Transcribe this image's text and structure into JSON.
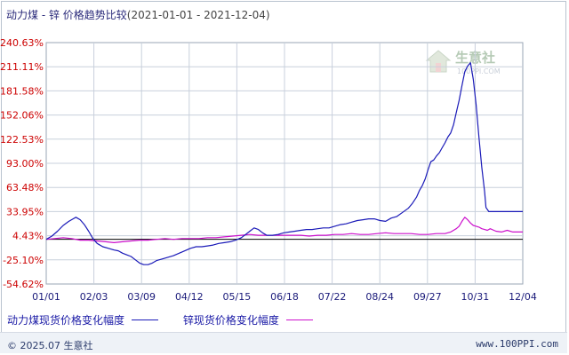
{
  "header": {
    "title": "动力煤 - 锌 价格趋势比较",
    "date_range": "(2021-01-01 - 2021-12-04)"
  },
  "watermark": {
    "brand": "生意社",
    "url": "100PPI.COM"
  },
  "footer": {
    "copyright": "© 2025.07 生意社",
    "site": "www.100PPI.com"
  },
  "colors": {
    "series_coal": "#1a1ab8",
    "series_zinc": "#cc10cc",
    "tick_label": "#cc0000",
    "grid": "#c8d0dc",
    "zero_line": "#000000"
  },
  "chart_data": {
    "type": "line",
    "title": "动力煤 - 锌 价格趋势比较",
    "x_tick_labels": [
      "01/01",
      "02/03",
      "03/09",
      "04/12",
      "05/15",
      "06/18",
      "07/22",
      "08/24",
      "09/27",
      "10/31",
      "12/04"
    ],
    "y_tick_labels": [
      "240.63%",
      "211.11%",
      "181.58%",
      "152.06%",
      "122.53%",
      "93.00%",
      "63.48%",
      "33.95%",
      "4.43%",
      "-25.10%",
      "-54.62%"
    ],
    "ylim": [
      -54.62,
      240.63
    ],
    "grid": true,
    "legend_position": "bottom-left",
    "x_domain": [
      0,
      337
    ],
    "series": [
      {
        "name": "动力煤现货价格变化幅度",
        "color": "#1a1ab8",
        "points": [
          [
            0,
            0
          ],
          [
            4,
            4
          ],
          [
            8,
            10
          ],
          [
            12,
            17
          ],
          [
            16,
            22
          ],
          [
            19,
            25
          ],
          [
            21,
            27
          ],
          [
            24,
            24
          ],
          [
            27,
            18
          ],
          [
            30,
            10
          ],
          [
            33,
            1
          ],
          [
            36,
            -5
          ],
          [
            40,
            -9
          ],
          [
            44,
            -11
          ],
          [
            48,
            -13
          ],
          [
            51,
            -14
          ],
          [
            54,
            -17
          ],
          [
            57,
            -19
          ],
          [
            60,
            -21
          ],
          [
            63,
            -25
          ],
          [
            66,
            -29
          ],
          [
            69,
            -31
          ],
          [
            72,
            -31
          ],
          [
            75,
            -29
          ],
          [
            78,
            -26
          ],
          [
            82,
            -24
          ],
          [
            86,
            -22
          ],
          [
            90,
            -20
          ],
          [
            94,
            -17
          ],
          [
            98,
            -14
          ],
          [
            102,
            -11
          ],
          [
            106,
            -9
          ],
          [
            110,
            -9
          ],
          [
            114,
            -8
          ],
          [
            118,
            -7
          ],
          [
            122,
            -5
          ],
          [
            126,
            -4
          ],
          [
            130,
            -3
          ],
          [
            134,
            -1
          ],
          [
            138,
            2
          ],
          [
            141,
            6
          ],
          [
            144,
            10
          ],
          [
            147,
            14
          ],
          [
            150,
            12
          ],
          [
            153,
            8
          ],
          [
            156,
            5
          ],
          [
            160,
            5
          ],
          [
            164,
            6
          ],
          [
            168,
            8
          ],
          [
            172,
            9
          ],
          [
            176,
            10
          ],
          [
            180,
            11
          ],
          [
            184,
            12
          ],
          [
            188,
            12
          ],
          [
            192,
            13
          ],
          [
            196,
            14
          ],
          [
            200,
            14
          ],
          [
            204,
            16
          ],
          [
            208,
            18
          ],
          [
            212,
            19
          ],
          [
            216,
            21
          ],
          [
            220,
            23
          ],
          [
            224,
            24
          ],
          [
            228,
            25
          ],
          [
            232,
            25
          ],
          [
            236,
            23
          ],
          [
            240,
            22
          ],
          [
            244,
            26
          ],
          [
            248,
            28
          ],
          [
            252,
            33
          ],
          [
            256,
            38
          ],
          [
            259,
            44
          ],
          [
            262,
            52
          ],
          [
            264,
            60
          ],
          [
            266,
            66
          ],
          [
            268,
            74
          ],
          [
            270,
            85
          ],
          [
            272,
            95
          ],
          [
            274,
            97
          ],
          [
            276,
            102
          ],
          [
            278,
            106
          ],
          [
            280,
            112
          ],
          [
            282,
            118
          ],
          [
            284,
            125
          ],
          [
            286,
            130
          ],
          [
            288,
            140
          ],
          [
            290,
            155
          ],
          [
            292,
            170
          ],
          [
            294,
            188
          ],
          [
            296,
            205
          ],
          [
            298,
            212
          ],
          [
            300,
            216
          ],
          [
            302,
            196
          ],
          [
            304,
            165
          ],
          [
            306,
            125
          ],
          [
            308,
            88
          ],
          [
            310,
            58
          ],
          [
            311,
            39
          ],
          [
            313,
            34
          ],
          [
            316,
            34
          ],
          [
            320,
            34
          ],
          [
            326,
            34
          ],
          [
            332,
            34
          ],
          [
            337,
            34
          ]
        ]
      },
      {
        "name": "锌现货价格变化幅度",
        "color": "#cc10cc",
        "points": [
          [
            0,
            0
          ],
          [
            6,
            1
          ],
          [
            12,
            2
          ],
          [
            18,
            1
          ],
          [
            24,
            -1
          ],
          [
            30,
            -1
          ],
          [
            36,
            -2
          ],
          [
            42,
            -3
          ],
          [
            48,
            -4
          ],
          [
            54,
            -3
          ],
          [
            60,
            -2
          ],
          [
            66,
            -1
          ],
          [
            72,
            -1
          ],
          [
            78,
            0
          ],
          [
            84,
            1
          ],
          [
            90,
            0
          ],
          [
            96,
            1
          ],
          [
            102,
            1
          ],
          [
            108,
            1
          ],
          [
            114,
            2
          ],
          [
            120,
            2
          ],
          [
            126,
            3
          ],
          [
            132,
            4
          ],
          [
            138,
            5
          ],
          [
            144,
            6
          ],
          [
            150,
            5
          ],
          [
            156,
            5
          ],
          [
            162,
            5
          ],
          [
            168,
            5
          ],
          [
            174,
            5
          ],
          [
            180,
            5
          ],
          [
            186,
            4
          ],
          [
            192,
            5
          ],
          [
            198,
            5
          ],
          [
            204,
            6
          ],
          [
            210,
            6
          ],
          [
            216,
            7
          ],
          [
            222,
            6
          ],
          [
            228,
            6
          ],
          [
            234,
            7
          ],
          [
            240,
            8
          ],
          [
            246,
            7
          ],
          [
            252,
            7
          ],
          [
            258,
            7
          ],
          [
            264,
            6
          ],
          [
            270,
            6
          ],
          [
            276,
            7
          ],
          [
            282,
            7
          ],
          [
            286,
            9
          ],
          [
            288,
            11
          ],
          [
            290,
            13
          ],
          [
            292,
            16
          ],
          [
            294,
            22
          ],
          [
            296,
            27
          ],
          [
            298,
            24
          ],
          [
            300,
            20
          ],
          [
            302,
            17
          ],
          [
            304,
            16
          ],
          [
            306,
            15
          ],
          [
            308,
            13
          ],
          [
            310,
            12
          ],
          [
            312,
            11
          ],
          [
            314,
            13
          ],
          [
            318,
            10
          ],
          [
            322,
            9
          ],
          [
            326,
            11
          ],
          [
            330,
            9
          ],
          [
            334,
            9
          ],
          [
            337,
            9
          ]
        ]
      }
    ]
  }
}
